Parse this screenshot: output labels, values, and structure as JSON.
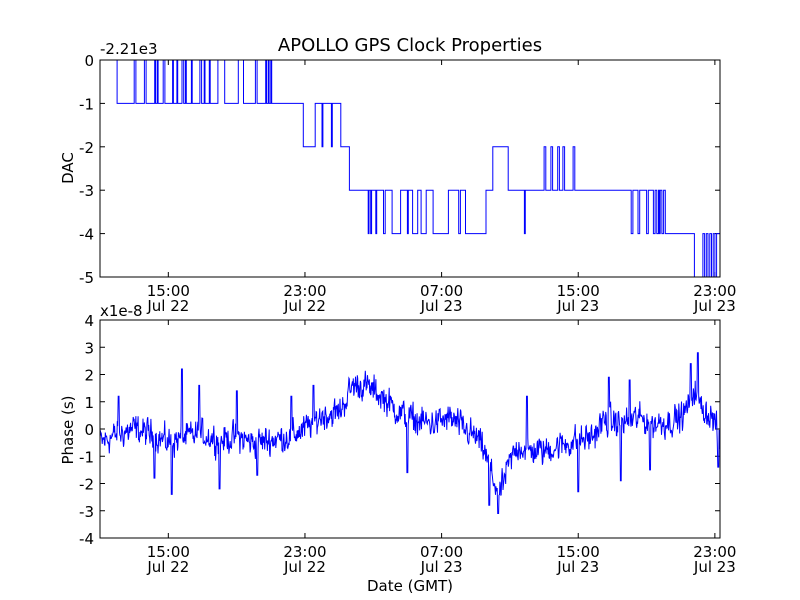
{
  "chart_data": [
    {
      "type": "line",
      "title": "APOLLO GPS Clock Properties",
      "ylabel": "DAC",
      "xlabel": "",
      "offset_label": "-2.21e3",
      "x_unit": "hours since Jul 22 00:00 GMT",
      "xlim": [
        11,
        47.3
      ],
      "ylim": [
        -5,
        0
      ],
      "yticks": [
        0,
        -1,
        -2,
        -3,
        -4,
        -5
      ],
      "ytick_labels": [
        "0",
        "-1",
        "-2",
        "-3",
        "-4",
        "-5"
      ],
      "xticks": [
        {
          "x": 15,
          "time": "15:00",
          "date": "Jul 22"
        },
        {
          "x": 23,
          "time": "23:00",
          "date": "Jul 22"
        },
        {
          "x": 31,
          "time": "07:00",
          "date": "Jul 23"
        },
        {
          "x": 39,
          "time": "15:00",
          "date": "Jul 23"
        },
        {
          "x": 47,
          "time": "23:00",
          "date": "Jul 23"
        }
      ],
      "series": [
        {
          "name": "DAC",
          "color": "#0000ff",
          "levels": [
            [
              11.0,
              0
            ],
            [
              11.8,
              0
            ],
            [
              12.0,
              -1
            ],
            [
              12.9,
              -1
            ],
            [
              13.0,
              0
            ],
            [
              13.1,
              -1
            ],
            [
              13.5,
              -1
            ],
            [
              13.6,
              0
            ],
            [
              13.7,
              -1
            ],
            [
              14.1,
              -1
            ],
            [
              14.2,
              0
            ],
            [
              14.25,
              -1
            ],
            [
              14.35,
              0
            ],
            [
              14.4,
              -1
            ],
            [
              14.6,
              -1
            ],
            [
              14.7,
              0
            ],
            [
              14.8,
              -1
            ],
            [
              15.2,
              -1
            ],
            [
              15.25,
              0
            ],
            [
              15.3,
              -1
            ],
            [
              15.5,
              0
            ],
            [
              15.55,
              -1
            ],
            [
              15.8,
              0
            ],
            [
              15.9,
              -1
            ],
            [
              16.0,
              0
            ],
            [
              16.05,
              -1
            ],
            [
              16.3,
              -1
            ],
            [
              16.35,
              0
            ],
            [
              16.4,
              -1
            ],
            [
              16.8,
              -1
            ],
            [
              16.85,
              0
            ],
            [
              16.95,
              -1
            ],
            [
              17.1,
              0
            ],
            [
              17.15,
              -1
            ],
            [
              17.3,
              -1
            ],
            [
              17.4,
              0
            ],
            [
              17.45,
              -1
            ],
            [
              17.8,
              -1
            ],
            [
              17.9,
              0
            ],
            [
              18.2,
              0
            ],
            [
              18.3,
              -1
            ],
            [
              19.0,
              -1
            ],
            [
              19.1,
              0
            ],
            [
              19.3,
              0
            ],
            [
              19.4,
              -1
            ],
            [
              20.0,
              -1
            ],
            [
              20.1,
              0
            ],
            [
              20.2,
              -1
            ],
            [
              20.6,
              -1
            ],
            [
              20.7,
              0
            ],
            [
              20.75,
              -1
            ],
            [
              20.85,
              0
            ],
            [
              20.9,
              -1
            ],
            [
              21.0,
              0
            ],
            [
              21.05,
              -1
            ],
            [
              22.8,
              -1
            ],
            [
              22.9,
              -2
            ],
            [
              23.5,
              -2
            ],
            [
              23.6,
              -1
            ],
            [
              23.9,
              -1
            ],
            [
              24.0,
              -2
            ],
            [
              24.05,
              -1
            ],
            [
              24.5,
              -1
            ],
            [
              24.55,
              -2
            ],
            [
              24.6,
              -1
            ],
            [
              25.0,
              -1
            ],
            [
              25.1,
              -2
            ],
            [
              25.5,
              -2
            ],
            [
              25.6,
              -3
            ],
            [
              26.6,
              -3
            ],
            [
              26.7,
              -4
            ],
            [
              26.75,
              -3
            ],
            [
              26.85,
              -4
            ],
            [
              26.9,
              -3
            ],
            [
              27.1,
              -3
            ],
            [
              27.15,
              -4
            ],
            [
              27.2,
              -3
            ],
            [
              27.5,
              -3
            ],
            [
              27.6,
              -4
            ],
            [
              27.7,
              -3
            ],
            [
              28.0,
              -3
            ],
            [
              28.1,
              -4
            ],
            [
              28.5,
              -4
            ],
            [
              28.6,
              -3
            ],
            [
              28.9,
              -3
            ],
            [
              29.0,
              -4
            ],
            [
              29.05,
              -3
            ],
            [
              29.2,
              -3
            ],
            [
              29.3,
              -4
            ],
            [
              29.5,
              -4
            ],
            [
              29.6,
              -3
            ],
            [
              29.7,
              -3
            ],
            [
              29.8,
              -4
            ],
            [
              30.0,
              -4
            ],
            [
              30.1,
              -3
            ],
            [
              30.4,
              -3
            ],
            [
              30.5,
              -4
            ],
            [
              31.3,
              -4
            ],
            [
              31.4,
              -3
            ],
            [
              31.9,
              -3
            ],
            [
              32.0,
              -4
            ],
            [
              32.1,
              -3
            ],
            [
              32.3,
              -3
            ],
            [
              32.4,
              -4
            ],
            [
              33.5,
              -4
            ],
            [
              33.6,
              -3
            ],
            [
              33.9,
              -3
            ],
            [
              34.0,
              -2
            ],
            [
              34.8,
              -2
            ],
            [
              34.9,
              -3
            ],
            [
              35.8,
              -3
            ],
            [
              35.85,
              -4
            ],
            [
              35.9,
              -3
            ],
            [
              36.9,
              -3
            ],
            [
              37.0,
              -2
            ],
            [
              37.1,
              -3
            ],
            [
              37.3,
              -3
            ],
            [
              37.4,
              -2
            ],
            [
              37.5,
              -3
            ],
            [
              37.7,
              -3
            ],
            [
              37.8,
              -2
            ],
            [
              37.9,
              -3
            ],
            [
              38.0,
              -3
            ],
            [
              38.1,
              -2
            ],
            [
              38.2,
              -3
            ],
            [
              38.6,
              -3
            ],
            [
              38.7,
              -2
            ],
            [
              38.8,
              -3
            ],
            [
              42.0,
              -3
            ],
            [
              42.1,
              -4
            ],
            [
              42.2,
              -3
            ],
            [
              42.4,
              -3
            ],
            [
              42.5,
              -4
            ],
            [
              42.6,
              -3
            ],
            [
              42.9,
              -3
            ],
            [
              43.0,
              -4
            ],
            [
              43.1,
              -3
            ],
            [
              43.3,
              -3
            ],
            [
              43.4,
              -4
            ],
            [
              43.5,
              -3
            ],
            [
              43.6,
              -4
            ],
            [
              43.7,
              -3
            ],
            [
              43.75,
              -4
            ],
            [
              43.8,
              -3
            ],
            [
              43.9,
              -4
            ],
            [
              44.0,
              -3
            ],
            [
              44.1,
              -4
            ],
            [
              45.7,
              -4
            ],
            [
              45.8,
              -5
            ],
            [
              46.2,
              -5
            ],
            [
              46.3,
              -4
            ],
            [
              46.4,
              -5
            ],
            [
              46.5,
              -4
            ],
            [
              46.6,
              -5
            ],
            [
              46.7,
              -4
            ],
            [
              46.8,
              -5
            ],
            [
              46.9,
              -4
            ],
            [
              47.0,
              -5
            ],
            [
              47.1,
              -4
            ],
            [
              47.2,
              -4
            ],
            [
              47.3,
              -4
            ]
          ]
        }
      ]
    },
    {
      "type": "line",
      "title": "",
      "ylabel": "Phase (s)",
      "xlabel": "Date (GMT)",
      "offset_label": "x1e-8",
      "x_unit": "hours since Jul 22 00:00 GMT",
      "xlim": [
        11,
        47.3
      ],
      "ylim": [
        -4,
        4
      ],
      "yticks": [
        4,
        3,
        2,
        1,
        0,
        -1,
        -2,
        -3,
        -4
      ],
      "ytick_labels": [
        "4",
        "3",
        "2",
        "1",
        "0",
        "-1",
        "-2",
        "-3",
        "-4"
      ],
      "xticks": [
        {
          "x": 15,
          "time": "15:00",
          "date": "Jul 22"
        },
        {
          "x": 23,
          "time": "23:00",
          "date": "Jul 22"
        },
        {
          "x": 31,
          "time": "07:00",
          "date": "Jul 23"
        },
        {
          "x": 39,
          "time": "15:00",
          "date": "Jul 23"
        },
        {
          "x": 47,
          "time": "23:00",
          "date": "Jul 23"
        }
      ],
      "series": [
        {
          "name": "Phase",
          "color": "#0000ff",
          "noise": 0.55,
          "trend": [
            [
              11.0,
              -0.5
            ],
            [
              12.0,
              -0.2
            ],
            [
              13.0,
              0.0
            ],
            [
              14.0,
              -0.2
            ],
            [
              15.0,
              -0.5
            ],
            [
              16.0,
              -0.3
            ],
            [
              17.0,
              -0.2
            ],
            [
              18.0,
              -0.4
            ],
            [
              19.0,
              -0.3
            ],
            [
              20.0,
              -0.5
            ],
            [
              21.0,
              -0.4
            ],
            [
              22.0,
              -0.3
            ],
            [
              23.0,
              0.0
            ],
            [
              24.0,
              0.5
            ],
            [
              25.0,
              0.6
            ],
            [
              25.8,
              1.6
            ],
            [
              26.5,
              1.6
            ],
            [
              27.5,
              1.2
            ],
            [
              28.5,
              0.6
            ],
            [
              29.5,
              0.3
            ],
            [
              30.5,
              0.2
            ],
            [
              31.5,
              0.4
            ],
            [
              32.3,
              0.0
            ],
            [
              33.0,
              -0.3
            ],
            [
              33.5,
              -0.8
            ],
            [
              34.0,
              -1.8
            ],
            [
              34.4,
              -2.4
            ],
            [
              35.0,
              -1.2
            ],
            [
              35.5,
              -0.6
            ],
            [
              36.0,
              -0.8
            ],
            [
              37.0,
              -0.8
            ],
            [
              38.0,
              -0.6
            ],
            [
              39.0,
              -0.4
            ],
            [
              39.8,
              -0.3
            ],
            [
              40.5,
              0.3
            ],
            [
              41.5,
              0.2
            ],
            [
              42.5,
              0.4
            ],
            [
              43.5,
              0.2
            ],
            [
              44.5,
              0.3
            ],
            [
              45.2,
              0.5
            ],
            [
              45.8,
              1.5
            ],
            [
              46.2,
              0.8
            ],
            [
              47.0,
              0.3
            ],
            [
              47.3,
              -0.8
            ]
          ],
          "spikes": [
            [
              12.1,
              1.2
            ],
            [
              14.2,
              -1.8
            ],
            [
              15.2,
              -2.4
            ],
            [
              15.8,
              2.2
            ],
            [
              16.8,
              1.6
            ],
            [
              18.0,
              -2.2
            ],
            [
              19.0,
              1.4
            ],
            [
              20.2,
              -1.7
            ],
            [
              22.2,
              1.2
            ],
            [
              23.5,
              1.6
            ],
            [
              29.0,
              -1.6
            ],
            [
              33.8,
              -2.8
            ],
            [
              34.3,
              -3.1
            ],
            [
              36.0,
              1.2
            ],
            [
              39.0,
              -2.3
            ],
            [
              40.8,
              1.9
            ],
            [
              41.5,
              -1.9
            ],
            [
              42.0,
              1.8
            ],
            [
              43.2,
              -1.5
            ],
            [
              45.6,
              2.4
            ],
            [
              46.0,
              2.8
            ],
            [
              47.2,
              -1.4
            ]
          ]
        }
      ]
    }
  ]
}
